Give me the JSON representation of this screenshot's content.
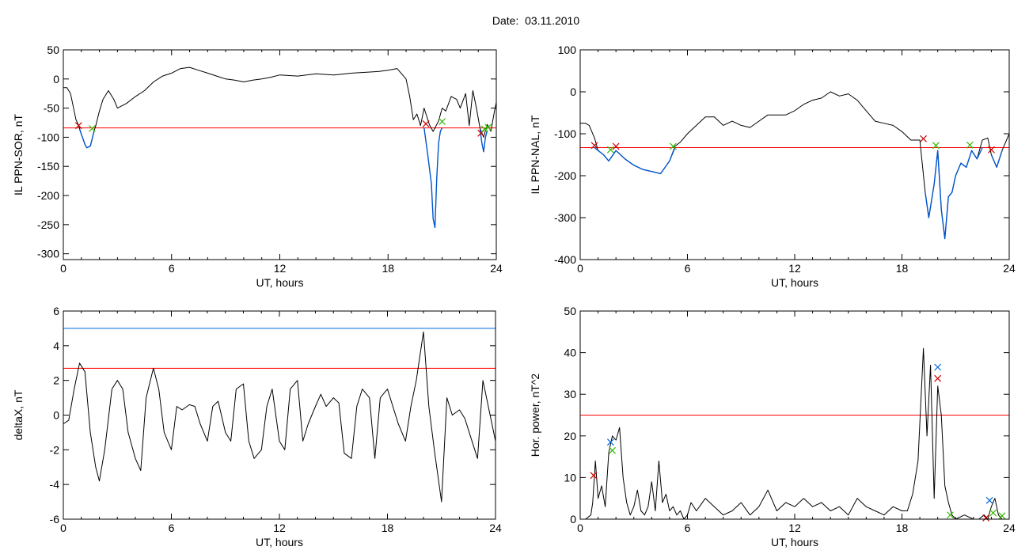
{
  "page": {
    "title": "Date:  03.11.2010"
  },
  "chart_data": [
    {
      "type": "line",
      "ylabel": "IL PPN-SOR, nT",
      "xlabel": "UT, hours",
      "xlim": [
        0,
        24
      ],
      "ylim": [
        -310,
        50
      ],
      "xticks": [
        0,
        6,
        12,
        18,
        24
      ],
      "yticks": [
        -300,
        -250,
        -200,
        -150,
        -100,
        -50,
        0,
        50
      ],
      "thresholds": [
        {
          "y": -84,
          "color": "#ff0000"
        }
      ],
      "series": [
        {
          "color": "#000000",
          "x": [
            0,
            0.2,
            0.4,
            0.5,
            0.6,
            0.7,
            0.85,
            1.0,
            1.2,
            1.3,
            1.5,
            1.7,
            1.8,
            2.0,
            2.2,
            2.5,
            2.8,
            3.0,
            3.5,
            4.0,
            4.5,
            5.0,
            5.5,
            6.0,
            6.5,
            7.0,
            7.5,
            8.0,
            8.5,
            9.0,
            9.5,
            10.0,
            10.5,
            11.0,
            11.5,
            12.0,
            13.0,
            14.0,
            15.0,
            16.0,
            17.0,
            17.5,
            18.0,
            18.5,
            19.0,
            19.2,
            19.4,
            19.6,
            19.8,
            20.0,
            20.3,
            20.5,
            20.8,
            21.0,
            21.2,
            21.5,
            21.8,
            22.0,
            22.3,
            22.5,
            22.7,
            22.9,
            23.1,
            23.3,
            23.5,
            23.7,
            23.9,
            24.0
          ],
          "y": [
            -15,
            -15,
            -25,
            -40,
            -55,
            -70,
            -80,
            -95,
            -112,
            -118,
            -115,
            -90,
            -80,
            -55,
            -35,
            -20,
            -35,
            -50,
            -42,
            -30,
            -20,
            -5,
            5,
            10,
            18,
            20,
            15,
            10,
            5,
            0,
            -2,
            -5,
            -2,
            0,
            3,
            7,
            5,
            9,
            7,
            10,
            12,
            13,
            15,
            18,
            0,
            -30,
            -70,
            -60,
            -80,
            -50,
            -79,
            -90,
            -72,
            -50,
            -55,
            -30,
            -35,
            -50,
            -25,
            -80,
            -20,
            -50,
            -85,
            -100,
            -78,
            -90,
            -55,
            -40
          ]
        },
        {
          "color": "#0055cc",
          "x": [
            0.9,
            1.0,
            1.2,
            1.3,
            1.5,
            1.7
          ],
          "y": [
            -86,
            -95,
            -112,
            -118,
            -115,
            -90
          ]
        },
        {
          "color": "#0055cc",
          "x": [
            20.0,
            20.2,
            20.4,
            20.5,
            20.6,
            20.7,
            20.8,
            20.9,
            21.0
          ],
          "y": [
            -84,
            -130,
            -180,
            -240,
            -255,
            -170,
            -110,
            -90,
            -84
          ]
        },
        {
          "color": "#0055cc",
          "x": [
            23.1,
            23.2,
            23.3,
            23.4,
            23.5
          ],
          "y": [
            -86,
            -110,
            -125,
            -100,
            -88
          ]
        }
      ],
      "markers": [
        {
          "x": 0.85,
          "y": -80,
          "color": "#cc0000"
        },
        {
          "x": 1.6,
          "y": -85,
          "color": "#33bb00"
        },
        {
          "x": 20.1,
          "y": -77,
          "color": "#cc0000"
        },
        {
          "x": 21.0,
          "y": -73,
          "color": "#33bb00"
        },
        {
          "x": 23.15,
          "y": -93,
          "color": "#cc0000"
        },
        {
          "x": 23.35,
          "y": -86,
          "color": "#33bb00"
        },
        {
          "x": 23.55,
          "y": -83,
          "color": "#33bb00"
        }
      ]
    },
    {
      "type": "line",
      "ylabel": "IL PPN-NAL, nT",
      "xlabel": "UT, hours",
      "xlim": [
        0,
        24
      ],
      "ylim": [
        -400,
        100
      ],
      "xticks": [
        0,
        6,
        12,
        18,
        24
      ],
      "yticks": [
        -400,
        -300,
        -200,
        -100,
        0,
        100
      ],
      "thresholds": [
        {
          "y": -133,
          "color": "#ff0000"
        }
      ],
      "series": [
        {
          "color": "#000000",
          "x": [
            0,
            0.3,
            0.5,
            0.8,
            1.0,
            1.3,
            1.6,
            2.0,
            2.5,
            3.0,
            3.5,
            4.0,
            4.5,
            5.0,
            5.3,
            5.6,
            6.0,
            6.5,
            7.0,
            7.5,
            8.0,
            8.5,
            9.0,
            9.5,
            10.0,
            10.5,
            11.0,
            11.5,
            12.0,
            12.5,
            13.0,
            13.5,
            14.0,
            14.5,
            15.0,
            15.5,
            16.0,
            16.5,
            17.0,
            17.5,
            18.0,
            18.5,
            19.0,
            19.3,
            19.5,
            19.8,
            20.0,
            20.2,
            20.4,
            20.6,
            20.8,
            21.0,
            21.3,
            21.6,
            21.9,
            22.2,
            22.5,
            22.8,
            23.0,
            23.3,
            23.6,
            24.0
          ],
          "y": [
            -75,
            -75,
            -80,
            -110,
            -140,
            -150,
            -165,
            -140,
            -160,
            -175,
            -185,
            -190,
            -195,
            -165,
            -130,
            -120,
            -100,
            -80,
            -60,
            -60,
            -80,
            -70,
            -80,
            -85,
            -70,
            -55,
            -55,
            -55,
            -45,
            -30,
            -20,
            -15,
            0,
            -10,
            -5,
            -20,
            -45,
            -70,
            -75,
            -80,
            -95,
            -115,
            -115,
            -240,
            -300,
            -220,
            -140,
            -280,
            -350,
            -250,
            -240,
            -200,
            -170,
            -180,
            -140,
            -160,
            -115,
            -110,
            -150,
            -180,
            -140,
            -100
          ]
        },
        {
          "color": "#0055cc",
          "x": [
            0.8,
            1.0,
            1.3,
            1.6,
            2.0,
            2.5,
            3.0,
            3.5,
            4.0,
            4.5,
            5.0,
            5.3
          ],
          "y": [
            -133,
            -140,
            -150,
            -165,
            -140,
            -160,
            -175,
            -185,
            -190,
            -195,
            -165,
            -133
          ]
        },
        {
          "color": "#0055cc",
          "x": [
            19.3,
            19.5,
            19.8,
            20.0,
            20.2,
            20.4,
            20.6,
            20.8,
            21.0,
            21.3,
            21.6,
            21.9,
            22.2,
            22.5
          ],
          "y": [
            -240,
            -300,
            -220,
            -140,
            -280,
            -350,
            -250,
            -240,
            -200,
            -170,
            -180,
            -140,
            -160,
            -133
          ]
        },
        {
          "color": "#0055cc",
          "x": [
            23.0,
            23.3,
            23.6
          ],
          "y": [
            -150,
            -180,
            -140
          ]
        }
      ],
      "markers": [
        {
          "x": 0.8,
          "y": -128,
          "color": "#cc0000"
        },
        {
          "x": 1.7,
          "y": -138,
          "color": "#33bb00"
        },
        {
          "x": 2.0,
          "y": -130,
          "color": "#cc0000"
        },
        {
          "x": 5.2,
          "y": -130,
          "color": "#33bb00"
        },
        {
          "x": 19.2,
          "y": -112,
          "color": "#cc0000"
        },
        {
          "x": 19.9,
          "y": -128,
          "color": "#33bb00"
        },
        {
          "x": 21.8,
          "y": -127,
          "color": "#33bb00"
        },
        {
          "x": 23.0,
          "y": -138,
          "color": "#cc0000"
        }
      ]
    },
    {
      "type": "line",
      "ylabel": "deltaX, nT",
      "xlabel": "UT, hours",
      "xlim": [
        0,
        24
      ],
      "ylim": [
        -6,
        6
      ],
      "xticks": [
        0,
        6,
        12,
        18,
        24
      ],
      "yticks": [
        -6,
        -4,
        -2,
        0,
        2,
        4,
        6
      ],
      "thresholds": [
        {
          "y": 5.0,
          "color": "#0066dd"
        },
        {
          "y": 2.7,
          "color": "#ff0000"
        }
      ],
      "series": [
        {
          "color": "#000000",
          "x": [
            0,
            0.3,
            0.6,
            0.9,
            1.2,
            1.5,
            1.8,
            2.0,
            2.3,
            2.7,
            3.0,
            3.3,
            3.6,
            4.0,
            4.3,
            4.6,
            5.0,
            5.3,
            5.6,
            6.0,
            6.3,
            6.6,
            7.0,
            7.3,
            7.6,
            8.0,
            8.3,
            8.6,
            9.0,
            9.3,
            9.6,
            10.0,
            10.3,
            10.6,
            11.0,
            11.3,
            11.6,
            12.0,
            12.3,
            12.6,
            13.0,
            13.3,
            13.6,
            14.0,
            14.3,
            14.6,
            15.0,
            15.3,
            15.6,
            16.0,
            16.3,
            16.6,
            17.0,
            17.3,
            17.6,
            18.0,
            18.3,
            18.6,
            19.0,
            19.3,
            19.6,
            20.0,
            20.3,
            20.6,
            21.0,
            21.3,
            21.6,
            22.0,
            22.3,
            22.6,
            23.0,
            23.3,
            23.6,
            24.0
          ],
          "y": [
            -0.5,
            -0.3,
            1.5,
            3.0,
            2.5,
            -1.0,
            -3.0,
            -3.8,
            -2.0,
            1.5,
            2.0,
            1.5,
            -1.0,
            -2.5,
            -3.2,
            1.0,
            2.7,
            1.5,
            -1.0,
            -2.0,
            0.5,
            0.3,
            0.6,
            0.5,
            -0.5,
            -1.5,
            0.5,
            0.8,
            -1.0,
            -1.5,
            1.5,
            1.8,
            -1.5,
            -2.5,
            -2.0,
            0.5,
            1.5,
            -1.5,
            -2.0,
            1.5,
            2.0,
            -1.5,
            -0.5,
            0.5,
            1.2,
            0.5,
            1.0,
            0.7,
            -2.2,
            -2.5,
            0.5,
            1.5,
            1.0,
            -2.5,
            1.0,
            1.5,
            0.5,
            -0.5,
            -1.5,
            0.5,
            2.0,
            4.8,
            0.5,
            -2.0,
            -5.0,
            1.0,
            0.0,
            0.3,
            -0.2,
            -1.2,
            -2.5,
            2.0,
            0.5,
            -1.5
          ]
        }
      ],
      "markers": []
    },
    {
      "type": "line",
      "ylabel": "Hor. power, nT^2",
      "xlabel": "UT, hours",
      "xlim": [
        0,
        24
      ],
      "ylim": [
        0,
        50
      ],
      "xticks": [
        0,
        6,
        12,
        18,
        24
      ],
      "yticks": [
        0,
        10,
        20,
        30,
        40,
        50
      ],
      "thresholds": [
        {
          "y": 25,
          "color": "#ff0000"
        }
      ],
      "series": [
        {
          "color": "#000000",
          "x": [
            0,
            0.3,
            0.6,
            0.7,
            0.85,
            1.0,
            1.2,
            1.4,
            1.6,
            1.8,
            2.0,
            2.2,
            2.4,
            2.6,
            2.8,
            3.0,
            3.2,
            3.4,
            3.6,
            3.8,
            4.0,
            4.2,
            4.4,
            4.6,
            4.8,
            5.0,
            5.2,
            5.4,
            5.6,
            5.8,
            6.0,
            6.2,
            6.5,
            7.0,
            7.5,
            8.0,
            8.5,
            9.0,
            9.5,
            10.0,
            10.5,
            11.0,
            11.5,
            12.0,
            12.5,
            13.0,
            13.5,
            14.0,
            14.5,
            15.0,
            15.5,
            16.0,
            16.5,
            17.0,
            17.5,
            18.0,
            18.3,
            18.6,
            18.9,
            19.2,
            19.4,
            19.6,
            19.8,
            20.0,
            20.2,
            20.4,
            20.6,
            20.8,
            21.0,
            21.5,
            22.0,
            22.3,
            22.6,
            22.8,
            23.0,
            23.2,
            23.4,
            23.6,
            24.0
          ],
          "y": [
            0,
            0,
            1,
            4,
            14,
            5,
            8,
            3,
            16,
            20,
            19,
            22,
            10,
            4,
            1,
            3,
            7,
            2,
            1,
            3,
            9,
            2,
            14,
            4,
            6,
            2,
            3,
            1,
            2,
            0,
            1,
            4,
            2,
            5,
            3,
            1,
            2,
            4,
            1,
            3,
            7,
            2,
            4,
            3,
            5,
            3,
            4,
            2,
            3,
            1,
            5,
            3,
            2,
            1,
            3,
            2,
            2,
            6,
            14,
            41,
            20,
            37,
            5,
            32,
            25,
            8,
            4,
            1,
            0,
            1,
            0,
            0,
            1,
            0,
            3,
            5,
            1,
            0,
            0
          ]
        }
      ],
      "markers": [
        {
          "x": 0.75,
          "y": 10.5,
          "color": "#cc0000"
        },
        {
          "x": 1.7,
          "y": 18.5,
          "color": "#0066dd"
        },
        {
          "x": 1.8,
          "y": 16.5,
          "color": "#33bb00"
        },
        {
          "x": 20.0,
          "y": 36.5,
          "color": "#0066dd"
        },
        {
          "x": 20.0,
          "y": 33.8,
          "color": "#cc0000"
        },
        {
          "x": 20.7,
          "y": 1.0,
          "color": "#33bb00"
        },
        {
          "x": 22.7,
          "y": 0.3,
          "color": "#cc0000"
        },
        {
          "x": 22.9,
          "y": 4.5,
          "color": "#0066dd"
        },
        {
          "x": 23.1,
          "y": 1.5,
          "color": "#33bb00"
        },
        {
          "x": 23.6,
          "y": 0.8,
          "color": "#33bb00"
        }
      ]
    }
  ]
}
